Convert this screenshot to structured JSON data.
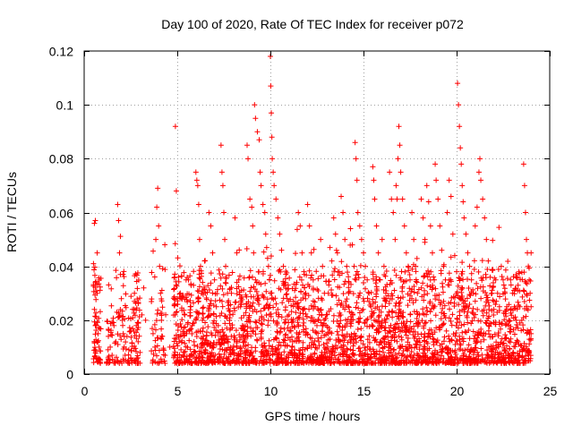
{
  "chart_data": {
    "type": "scatter",
    "title": "Day 100 of 2020, Rate Of TEC Index for receiver p072",
    "xlabel": "GPS time / hours",
    "ylabel": "ROTI / TECUs",
    "xlim": [
      0,
      25
    ],
    "ylim": [
      0,
      0.12
    ],
    "xticks": [
      0,
      5,
      10,
      15,
      20,
      25
    ],
    "yticks": [
      0,
      0.02,
      0.04,
      0.06,
      0.08,
      0.1,
      0.12
    ],
    "xtick_labels": [
      "0",
      "5",
      "10",
      "15",
      "20",
      "25"
    ],
    "ytick_labels": [
      "0",
      "0.02",
      "0.04",
      "0.06",
      "0.08",
      "0.1",
      "0.12"
    ],
    "grid": true,
    "marker": "plus",
    "color": "#ff0000",
    "series": [
      {
        "points": [
          [
            0.55,
            0.056
          ],
          [
            0.6,
            0.057
          ],
          [
            0.5,
            0.041
          ],
          [
            0.6,
            0.034
          ],
          [
            0.55,
            0.024
          ],
          [
            0.6,
            0.018
          ],
          [
            0.55,
            0.012
          ],
          [
            0.6,
            0.009
          ],
          [
            0.65,
            0.006
          ],
          [
            0.7,
            0.045
          ],
          [
            0.7,
            0.03
          ],
          [
            0.75,
            0.015
          ],
          [
            0.8,
            0.01
          ],
          [
            1.3,
            0.014
          ],
          [
            1.4,
            0.01
          ],
          [
            1.5,
            0.007
          ],
          [
            1.6,
            0.018
          ],
          [
            1.7,
            0.012
          ],
          [
            1.8,
            0.063
          ],
          [
            1.85,
            0.057
          ],
          [
            1.9,
            0.045
          ],
          [
            1.95,
            0.037
          ],
          [
            2.0,
            0.028
          ],
          [
            2.05,
            0.02
          ],
          [
            2.1,
            0.015
          ],
          [
            2.15,
            0.01
          ],
          [
            2.2,
            0.007
          ],
          [
            2.3,
            0.014
          ],
          [
            2.4,
            0.009
          ],
          [
            2.5,
            0.006
          ],
          [
            2.6,
            0.024
          ],
          [
            2.7,
            0.03
          ],
          [
            2.8,
            0.018
          ],
          [
            2.9,
            0.012
          ],
          [
            3.0,
            0.008
          ],
          [
            3.1,
            0.022
          ],
          [
            3.2,
            0.032
          ],
          [
            3.3,
            0.02
          ],
          [
            3.7,
            0.015
          ],
          [
            3.8,
            0.01
          ],
          [
            3.85,
            0.05
          ],
          [
            3.9,
            0.062
          ],
          [
            3.95,
            0.069
          ],
          [
            4.0,
            0.055
          ],
          [
            4.05,
            0.04
          ],
          [
            4.1,
            0.03
          ],
          [
            4.15,
            0.02
          ],
          [
            4.2,
            0.014
          ],
          [
            4.25,
            0.009
          ],
          [
            4.35,
            0.007
          ],
          [
            4.6,
            0.01
          ],
          [
            4.9,
            0.092
          ],
          [
            4.95,
            0.068
          ],
          [
            5.0,
            0.028
          ],
          [
            5.05,
            0.018
          ],
          [
            5.1,
            0.012
          ],
          [
            5.2,
            0.009
          ],
          [
            5.3,
            0.007
          ],
          [
            5.4,
            0.022
          ],
          [
            5.5,
            0.015
          ],
          [
            5.6,
            0.035
          ],
          [
            5.7,
            0.025
          ],
          [
            5.8,
            0.018
          ],
          [
            5.9,
            0.012
          ],
          [
            6.0,
            0.075
          ],
          [
            6.05,
            0.072
          ],
          [
            6.1,
            0.07
          ],
          [
            6.15,
            0.063
          ],
          [
            6.2,
            0.05
          ],
          [
            6.25,
            0.04
          ],
          [
            6.3,
            0.03
          ],
          [
            6.35,
            0.02
          ],
          [
            6.4,
            0.014
          ],
          [
            6.5,
            0.009
          ],
          [
            6.6,
            0.006
          ],
          [
            6.7,
            0.06
          ],
          [
            6.8,
            0.055
          ],
          [
            6.9,
            0.045
          ],
          [
            7.0,
            0.035
          ],
          [
            7.1,
            0.025
          ],
          [
            7.2,
            0.018
          ],
          [
            7.35,
            0.085
          ],
          [
            7.4,
            0.075
          ],
          [
            7.45,
            0.07
          ],
          [
            7.5,
            0.06
          ],
          [
            7.55,
            0.05
          ],
          [
            7.6,
            0.04
          ],
          [
            7.7,
            0.03
          ],
          [
            7.8,
            0.02
          ],
          [
            7.9,
            0.014
          ],
          [
            8.0,
            0.009
          ],
          [
            8.1,
            0.058
          ],
          [
            8.2,
            0.045
          ],
          [
            8.3,
            0.035
          ],
          [
            8.4,
            0.025
          ],
          [
            8.5,
            0.018
          ],
          [
            8.6,
            0.012
          ],
          [
            8.75,
            0.085
          ],
          [
            8.8,
            0.08
          ],
          [
            8.9,
            0.065
          ],
          [
            9.0,
            0.062
          ],
          [
            9.05,
            0.055
          ],
          [
            9.1,
            0.045
          ],
          [
            9.2,
            0.035
          ],
          [
            9.3,
            0.028
          ],
          [
            9.4,
            0.02
          ],
          [
            9.5,
            0.015
          ],
          [
            9.6,
            0.01
          ],
          [
            9.7,
            0.007
          ],
          [
            9.15,
            0.1
          ],
          [
            9.2,
            0.095
          ],
          [
            9.3,
            0.09
          ],
          [
            9.4,
            0.087
          ],
          [
            9.45,
            0.075
          ],
          [
            9.5,
            0.07
          ],
          [
            9.6,
            0.063
          ],
          [
            9.7,
            0.06
          ],
          [
            9.75,
            0.052
          ],
          [
            9.8,
            0.047
          ],
          [
            9.85,
            0.043
          ],
          [
            9.9,
            0.04
          ],
          [
            9.95,
            0.035
          ],
          [
            10.0,
            0.03
          ],
          [
            10.0,
            0.118
          ],
          [
            10.02,
            0.107
          ],
          [
            10.05,
            0.097
          ],
          [
            10.08,
            0.088
          ],
          [
            10.1,
            0.08
          ],
          [
            10.15,
            0.075
          ],
          [
            10.2,
            0.07
          ],
          [
            10.3,
            0.065
          ],
          [
            10.4,
            0.058
          ],
          [
            10.5,
            0.052
          ],
          [
            10.6,
            0.046
          ],
          [
            10.7,
            0.04
          ],
          [
            10.8,
            0.034
          ],
          [
            10.9,
            0.028
          ],
          [
            11.0,
            0.022
          ],
          [
            11.1,
            0.016
          ],
          [
            11.2,
            0.012
          ],
          [
            11.3,
            0.009
          ],
          [
            11.4,
            0.007
          ],
          [
            11.5,
            0.06
          ],
          [
            11.6,
            0.055
          ],
          [
            11.7,
            0.045
          ],
          [
            11.8,
            0.038
          ],
          [
            11.9,
            0.03
          ],
          [
            12.0,
            0.063
          ],
          [
            12.1,
            0.055
          ],
          [
            12.2,
            0.045
          ],
          [
            12.3,
            0.035
          ],
          [
            12.4,
            0.025
          ],
          [
            12.5,
            0.018
          ],
          [
            12.6,
            0.012
          ],
          [
            12.7,
            0.05
          ],
          [
            12.8,
            0.04
          ],
          [
            12.9,
            0.03
          ],
          [
            13.0,
            0.022
          ],
          [
            13.1,
            0.015
          ],
          [
            13.2,
            0.047
          ],
          [
            13.3,
            0.042
          ],
          [
            13.4,
            0.058
          ],
          [
            13.5,
            0.052
          ],
          [
            13.6,
            0.045
          ],
          [
            13.7,
            0.038
          ],
          [
            13.8,
            0.066
          ],
          [
            13.9,
            0.06
          ],
          [
            14.0,
            0.05
          ],
          [
            14.1,
            0.04
          ],
          [
            14.2,
            0.03
          ],
          [
            14.3,
            0.054
          ],
          [
            14.4,
            0.048
          ],
          [
            14.5,
            0.04
          ],
          [
            14.55,
            0.086
          ],
          [
            14.6,
            0.08
          ],
          [
            14.65,
            0.072
          ],
          [
            14.7,
            0.06
          ],
          [
            14.8,
            0.055
          ],
          [
            14.9,
            0.05
          ],
          [
            15.0,
            0.045
          ],
          [
            15.1,
            0.04
          ],
          [
            15.2,
            0.035
          ],
          [
            15.3,
            0.03
          ],
          [
            15.4,
            0.025
          ],
          [
            15.5,
            0.077
          ],
          [
            15.55,
            0.072
          ],
          [
            15.6,
            0.065
          ],
          [
            15.7,
            0.055
          ],
          [
            15.8,
            0.045
          ],
          [
            15.9,
            0.035
          ],
          [
            16.0,
            0.05
          ],
          [
            16.1,
            0.04
          ],
          [
            16.2,
            0.03
          ],
          [
            16.3,
            0.022
          ],
          [
            16.4,
            0.075
          ],
          [
            16.5,
            0.065
          ],
          [
            16.6,
            0.06
          ],
          [
            16.7,
            0.05
          ],
          [
            16.75,
            0.07
          ],
          [
            16.8,
            0.065
          ],
          [
            16.85,
            0.08
          ],
          [
            16.9,
            0.092
          ],
          [
            16.95,
            0.085
          ],
          [
            17.0,
            0.075
          ],
          [
            17.1,
            0.065
          ],
          [
            17.2,
            0.055
          ],
          [
            17.3,
            0.045
          ],
          [
            17.4,
            0.04
          ],
          [
            17.5,
            0.035
          ],
          [
            17.6,
            0.06
          ],
          [
            17.7,
            0.05
          ],
          [
            17.8,
            0.04
          ],
          [
            17.9,
            0.03
          ],
          [
            18.0,
            0.022
          ],
          [
            18.1,
            0.065
          ],
          [
            18.2,
            0.058
          ],
          [
            18.3,
            0.05
          ],
          [
            18.4,
            0.07
          ],
          [
            18.5,
            0.064
          ],
          [
            18.6,
            0.055
          ],
          [
            18.7,
            0.045
          ],
          [
            18.8,
            0.035
          ],
          [
            18.85,
            0.078
          ],
          [
            18.9,
            0.072
          ],
          [
            19.0,
            0.065
          ],
          [
            19.1,
            0.055
          ],
          [
            19.2,
            0.046
          ],
          [
            19.3,
            0.04
          ],
          [
            19.4,
            0.035
          ],
          [
            19.5,
            0.06
          ],
          [
            19.6,
            0.072
          ],
          [
            19.7,
            0.066
          ],
          [
            19.8,
            0.052
          ],
          [
            19.9,
            0.044
          ],
          [
            20.0,
            0.038
          ],
          [
            20.05,
            0.108
          ],
          [
            20.1,
            0.1
          ],
          [
            20.15,
            0.092
          ],
          [
            20.2,
            0.084
          ],
          [
            20.25,
            0.078
          ],
          [
            20.3,
            0.07
          ],
          [
            20.35,
            0.064
          ],
          [
            20.4,
            0.058
          ],
          [
            20.5,
            0.052
          ],
          [
            20.6,
            0.045
          ],
          [
            20.7,
            0.04
          ],
          [
            20.8,
            0.035
          ],
          [
            20.9,
            0.03
          ],
          [
            21.0,
            0.055
          ],
          [
            21.1,
            0.062
          ],
          [
            21.2,
            0.075
          ],
          [
            21.25,
            0.08
          ],
          [
            21.3,
            0.072
          ],
          [
            21.4,
            0.065
          ],
          [
            21.5,
            0.058
          ],
          [
            21.6,
            0.05
          ],
          [
            21.7,
            0.042
          ],
          [
            21.8,
            0.036
          ],
          [
            21.9,
            0.03
          ],
          [
            22.0,
            0.024
          ],
          [
            22.1,
            0.035
          ],
          [
            22.2,
            0.03
          ],
          [
            22.3,
            0.025
          ],
          [
            22.4,
            0.04
          ],
          [
            22.5,
            0.035
          ],
          [
            22.6,
            0.03
          ],
          [
            22.7,
            0.025
          ],
          [
            22.8,
            0.02
          ],
          [
            22.9,
            0.035
          ],
          [
            23.0,
            0.03
          ],
          [
            23.1,
            0.025
          ],
          [
            23.2,
            0.02
          ],
          [
            23.3,
            0.033
          ],
          [
            23.4,
            0.025
          ],
          [
            23.5,
            0.02
          ],
          [
            23.6,
            0.078
          ],
          [
            23.65,
            0.07
          ],
          [
            23.7,
            0.06
          ],
          [
            23.75,
            0.05
          ],
          [
            23.8,
            0.045
          ],
          [
            23.85,
            0.04
          ],
          [
            23.9,
            0.035
          ],
          [
            23.95,
            0.03
          ],
          [
            24.0,
            0.045
          ],
          [
            24.0,
            0.025
          ],
          [
            24.0,
            0.015
          ]
        ],
        "dense_floor": {
          "x_range": [
            0.5,
            24.0
          ],
          "y_typical_range": [
            0.004,
            0.025
          ],
          "description_values": "background noise of points, mostly 0.005-0.02 TECU, peaks up to ~0.04 between 5 h and 24 h"
        }
      }
    ]
  }
}
